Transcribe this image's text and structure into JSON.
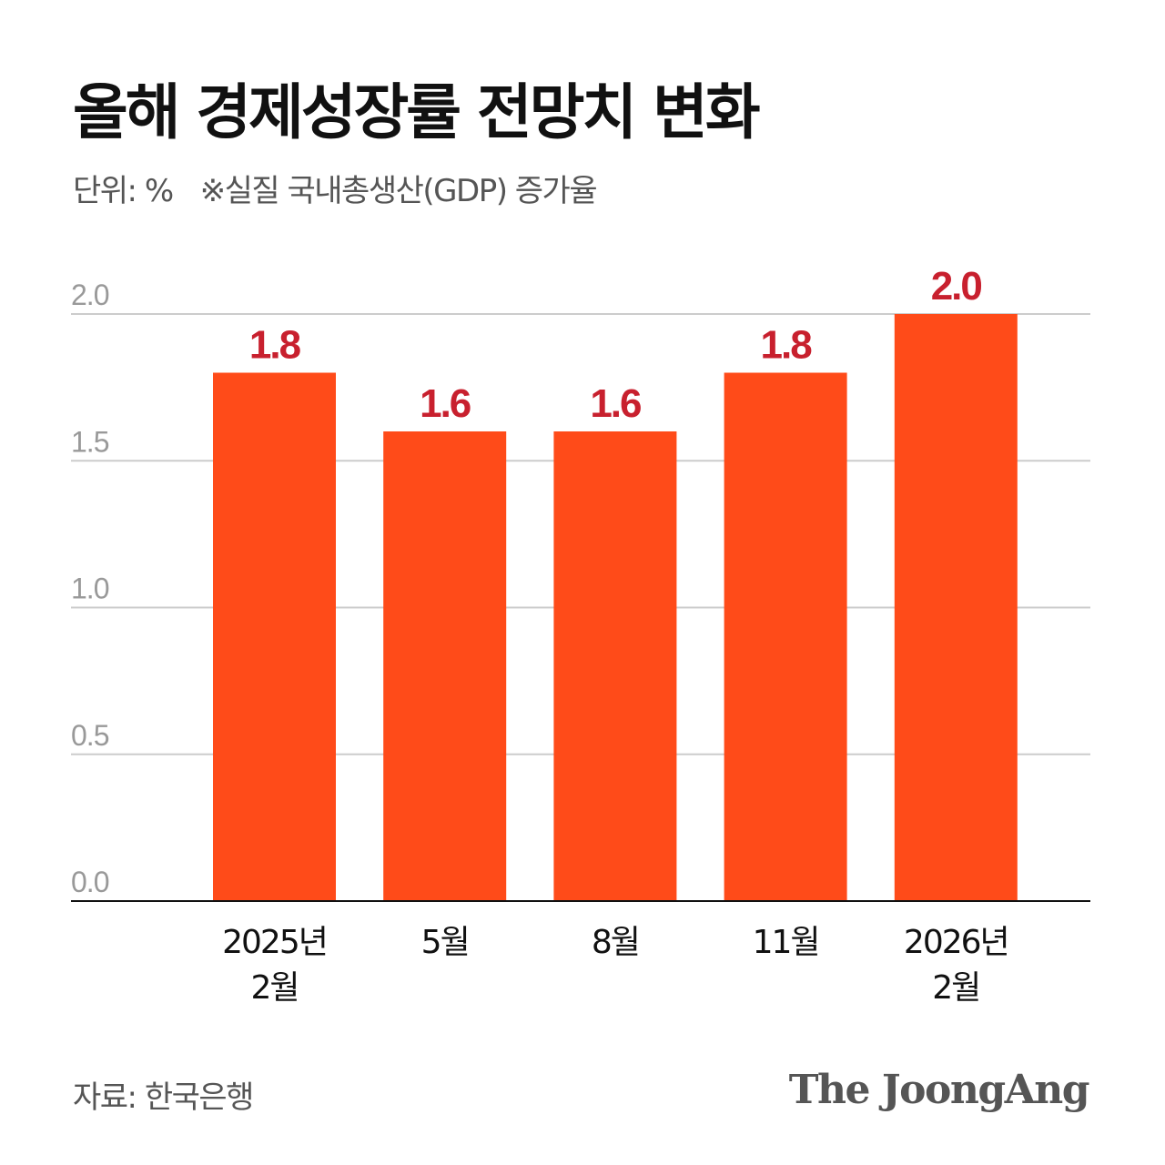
{
  "title": "올해 경제성장률 전망치 변화",
  "unit": "단위: %",
  "note": "※실질 국내총생산(GDP) 증가율",
  "source": "자료: 한국은행",
  "logo": "The JoongAng",
  "colors": {
    "bar": "#FF4B19",
    "label": "#C8202E",
    "grid": "#CCCCCC",
    "axis": "#111111",
    "tick": "#999999"
  },
  "chart_data": {
    "type": "bar",
    "title": "올해 경제성장률 전망치 변화",
    "categories": [
      [
        "2025년",
        "2월"
      ],
      [
        "5월"
      ],
      [
        "8월"
      ],
      [
        "11월"
      ],
      [
        "2026년",
        "2월"
      ]
    ],
    "values": [
      1.8,
      1.6,
      1.6,
      1.8,
      2.0
    ],
    "value_labels": [
      "1.8",
      "1.6",
      "1.6",
      "1.8",
      "2.0"
    ],
    "yticks": [
      "0.0",
      "0.5",
      "1.0",
      "1.5",
      "2.0"
    ],
    "ylim": [
      0,
      2.0
    ],
    "grid": true,
    "xlabel": "",
    "ylabel": ""
  }
}
